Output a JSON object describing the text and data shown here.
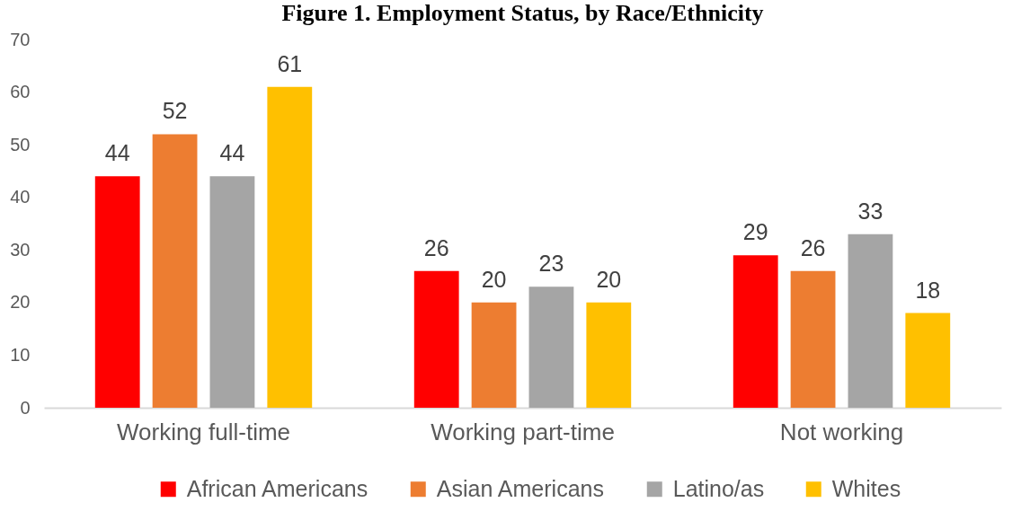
{
  "chart_data": {
    "type": "bar",
    "title": "Figure 1. Employment Status, by Race/Ethnicity",
    "categories": [
      "Working full-time",
      "Working part-time",
      "Not working"
    ],
    "series": [
      {
        "name": "African Americans",
        "color": "#ff0000",
        "values": [
          44,
          26,
          29
        ]
      },
      {
        "name": "Asian Americans",
        "color": "#ed7d31",
        "values": [
          52,
          20,
          26
        ]
      },
      {
        "name": "Latino/as",
        "color": "#a5a5a5",
        "values": [
          44,
          23,
          33
        ]
      },
      {
        "name": "Whites",
        "color": "#ffc000",
        "values": [
          61,
          20,
          18
        ]
      }
    ],
    "ylim": [
      0,
      70
    ],
    "yticks": [
      0,
      10,
      20,
      30,
      40,
      50,
      60,
      70
    ],
    "grid": false,
    "legend": "bottom",
    "data_labels": true
  }
}
